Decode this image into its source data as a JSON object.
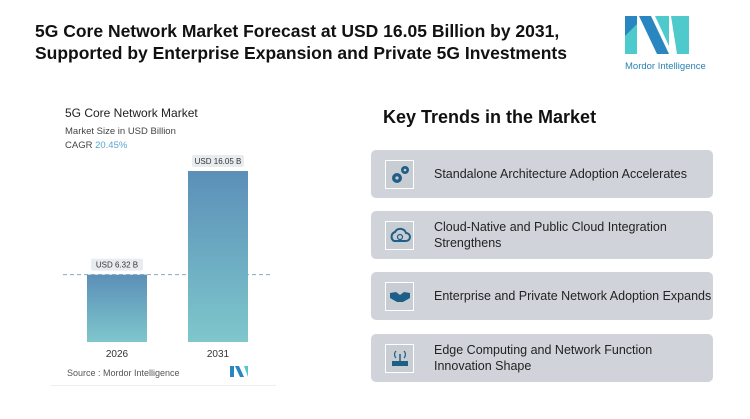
{
  "title_lines": [
    "5G Core Network Market Forecast at USD 16.05 Billion by 2031,",
    "Supported by Enterprise Expansion and Private 5G Investments"
  ],
  "logo": {
    "text": "Mordor Intelligence"
  },
  "chart_data": {
    "type": "bar",
    "title": "5G Core Network Market",
    "subtitle": "Market Size in USD Billion",
    "cagr_label": "CAGR",
    "cagr_value": "20.45%",
    "categories": [
      "2026",
      "2031"
    ],
    "values": [
      6.32,
      16.05
    ],
    "data_labels": [
      "USD 6.32 B",
      "USD 16.05 B"
    ],
    "ylim": [
      0,
      16.05
    ],
    "source": "Source : Mordor Intelligence",
    "colors": {
      "top": "#5b8fb8",
      "bottom": "#7ec7cc"
    }
  },
  "trends": {
    "heading": "Key Trends in the Market",
    "items": [
      {
        "icon": "gears-icon",
        "label": "Standalone Architecture Adoption Accelerates"
      },
      {
        "icon": "cloud-sync-icon",
        "label": "Cloud-Native and Public Cloud Integration Strengthens"
      },
      {
        "icon": "handshake-icon",
        "label": "Enterprise and Private Network Adoption Expands"
      },
      {
        "icon": "router-icon",
        "label": "Edge Computing and Network Function Innovation Shape"
      }
    ]
  }
}
